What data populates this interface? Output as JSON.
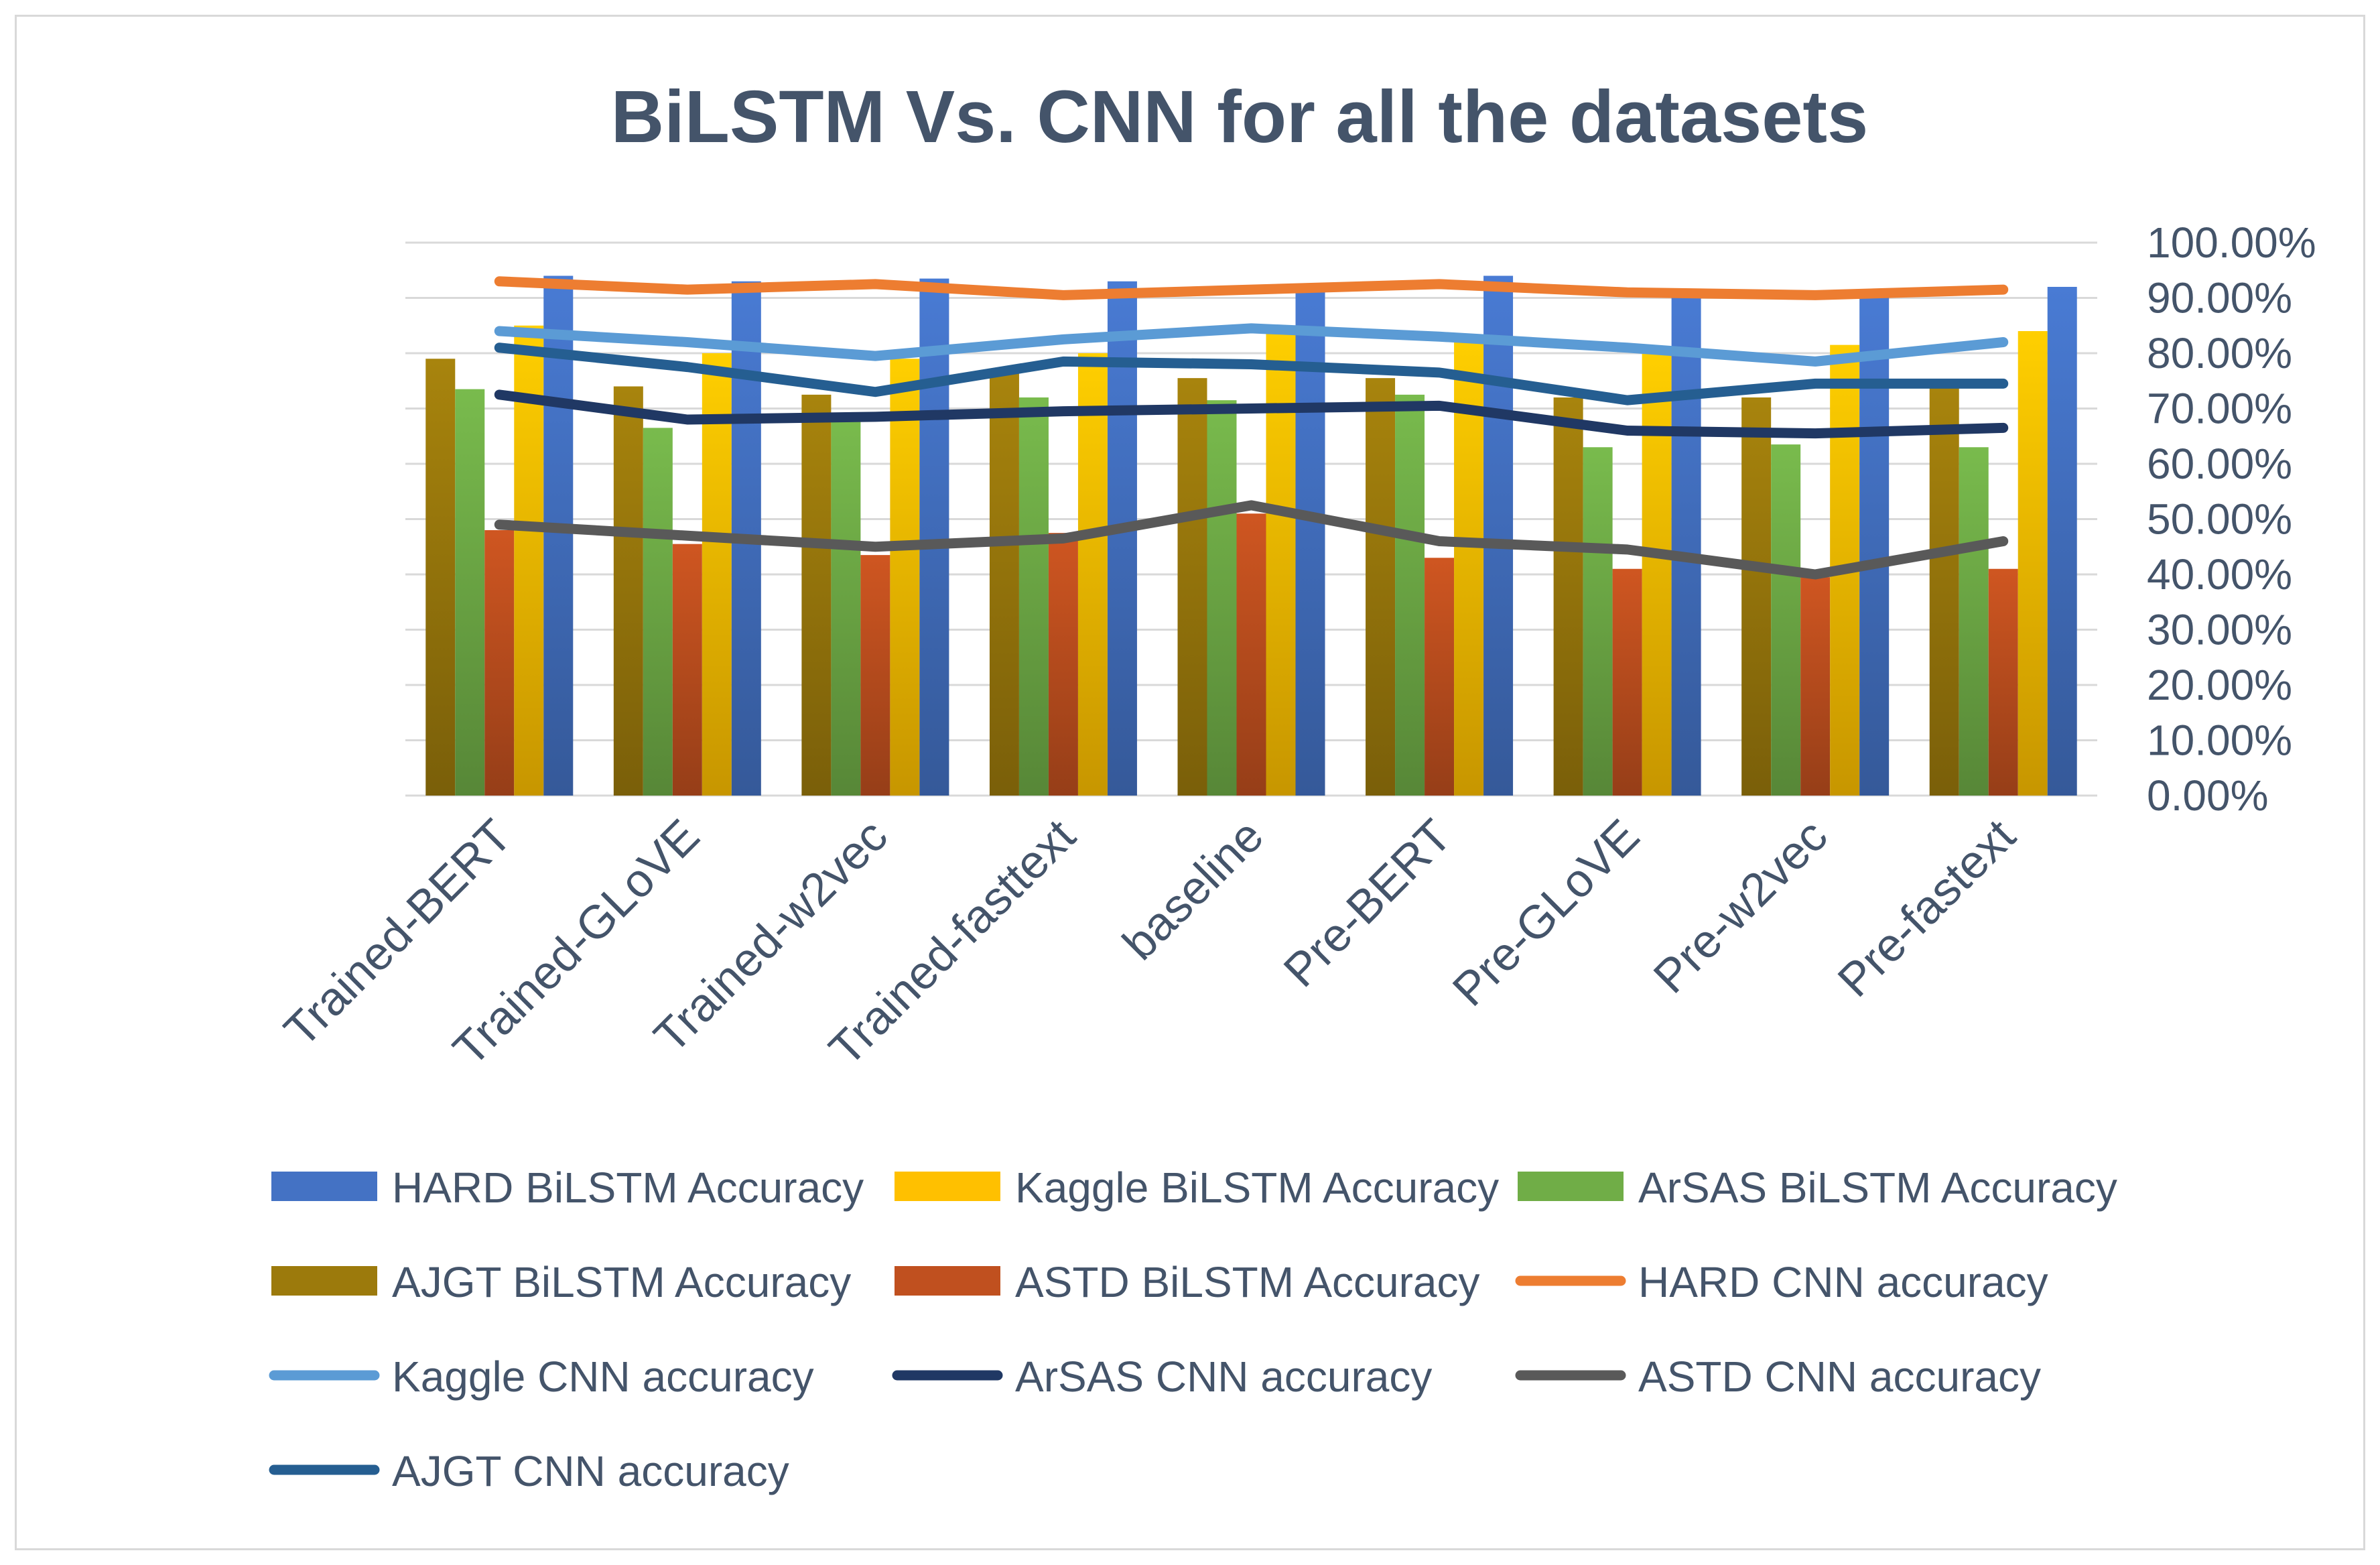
{
  "chart_data": {
    "type": "bar",
    "title": "BiLSTM Vs. CNN for all the datasets",
    "xlabel": "",
    "ylabel": "",
    "ylim": [
      0,
      1
    ],
    "yticks": [
      "0.00%",
      "10.00%",
      "20.00%",
      "30.00%",
      "40.00%",
      "50.00%",
      "60.00%",
      "70.00%",
      "80.00%",
      "90.00%",
      "100.00%"
    ],
    "grid": true,
    "y_axis_side": "right",
    "legend_position": "bottom",
    "categories": [
      "Trained-BERT",
      "Trained-GLoVE",
      "Trained-w2vec",
      "Trained-fasttext",
      "baseline",
      "Pre-BERT",
      "Pre-GLoVE",
      "Pre-w2vec",
      "Pre-fastext"
    ],
    "bar_series": [
      {
        "name": "AJGT BiLSTM Accuracy",
        "color": "#9c7a0c",
        "values": [
          0.79,
          0.74,
          0.725,
          0.765,
          0.755,
          0.755,
          0.72,
          0.72,
          0.74
        ]
      },
      {
        "name": "ArSAS BiLSTM Accuracy",
        "color": "#70ad47",
        "values": [
          0.735,
          0.665,
          0.68,
          0.72,
          0.715,
          0.725,
          0.63,
          0.635,
          0.63
        ]
      },
      {
        "name": "ASTD BiLSTM Accuracy",
        "color": "#c0501f",
        "values": [
          0.48,
          0.455,
          0.435,
          0.475,
          0.51,
          0.43,
          0.41,
          0.395,
          0.41
        ]
      },
      {
        "name": "Kaggle BiLSTM Accuracy",
        "color": "#ffc000",
        "values": [
          0.85,
          0.8,
          0.79,
          0.8,
          0.85,
          0.83,
          0.8,
          0.815,
          0.84
        ]
      },
      {
        "name": "HARD BiLSTM Accuracy",
        "color": "#4472c4",
        "values": [
          0.94,
          0.93,
          0.935,
          0.93,
          0.925,
          0.94,
          0.91,
          0.91,
          0.92
        ]
      }
    ],
    "line_series": [
      {
        "name": "HARD CNN accuracy",
        "color": "#ed7d31",
        "values": [
          0.93,
          0.915,
          0.925,
          0.905,
          0.915,
          0.925,
          0.91,
          0.905,
          0.915
        ]
      },
      {
        "name": "Kaggle CNN accuracy",
        "color": "#5b9bd5",
        "values": [
          0.84,
          0.82,
          0.795,
          0.825,
          0.845,
          0.83,
          0.81,
          0.785,
          0.82
        ]
      },
      {
        "name": "ArSAS CNN accuracy",
        "color": "#203864",
        "values": [
          0.725,
          0.68,
          0.685,
          0.695,
          0.7,
          0.705,
          0.66,
          0.655,
          0.665
        ]
      },
      {
        "name": "ASTD CNN accuracy",
        "color": "#595959",
        "values": [
          0.49,
          0.47,
          0.45,
          0.465,
          0.525,
          0.46,
          0.445,
          0.4,
          0.46
        ]
      },
      {
        "name": "AJGT CNN accuracy",
        "color": "#255e91",
        "values": [
          0.81,
          0.775,
          0.73,
          0.785,
          0.78,
          0.765,
          0.715,
          0.745,
          0.745
        ]
      }
    ],
    "legend_entries": [
      {
        "name": "HARD BiLSTM Accuracy",
        "kind": "bar",
        "color": "#4472c4"
      },
      {
        "name": "Kaggle BiLSTM Accuracy",
        "kind": "bar",
        "color": "#ffc000"
      },
      {
        "name": "ArSAS BiLSTM Accuracy",
        "kind": "bar",
        "color": "#70ad47"
      },
      {
        "name": "AJGT BiLSTM Accuracy",
        "kind": "bar",
        "color": "#9c7a0c"
      },
      {
        "name": "ASTD BiLSTM Accuracy",
        "kind": "bar",
        "color": "#c0501f"
      },
      {
        "name": "HARD CNN accuracy",
        "kind": "line",
        "color": "#ed7d31"
      },
      {
        "name": "Kaggle CNN accuracy",
        "kind": "line",
        "color": "#5b9bd5"
      },
      {
        "name": "ArSAS CNN accuracy",
        "kind": "line",
        "color": "#203864"
      },
      {
        "name": "ASTD CNN accuracy",
        "kind": "line",
        "color": "#595959"
      },
      {
        "name": "AJGT CNN accuracy",
        "kind": "line",
        "color": "#255e91"
      }
    ]
  }
}
